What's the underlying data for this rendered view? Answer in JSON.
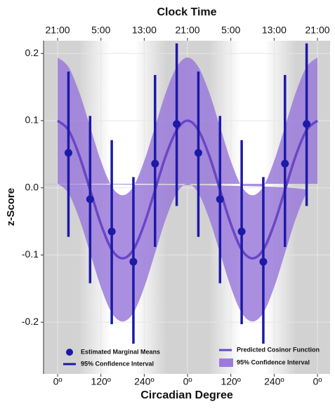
{
  "chart_data": {
    "type": "cosinor",
    "title": "Clock Time",
    "xlabel": "Circadian Degree",
    "ylabel": "z-Score",
    "xlim": [
      -39,
      755
    ],
    "ylim": [
      -0.277,
      0.219
    ],
    "xticks": [
      {
        "value": 0,
        "label": "0º"
      },
      {
        "value": 120,
        "label": "120º"
      },
      {
        "value": 240,
        "label": "240º"
      },
      {
        "value": 360,
        "label": "0º"
      },
      {
        "value": 480,
        "label": "120º"
      },
      {
        "value": 600,
        "label": "240º"
      },
      {
        "value": 720,
        "label": "0º"
      }
    ],
    "x2ticks": [
      {
        "value": 0,
        "label": "21:00"
      },
      {
        "value": 120,
        "label": "5:00"
      },
      {
        "value": 240,
        "label": "13:00"
      },
      {
        "value": 360,
        "label": "21:00"
      },
      {
        "value": 480,
        "label": "5:00"
      },
      {
        "value": 600,
        "label": "13:00"
      },
      {
        "value": 720,
        "label": "21:00"
      }
    ],
    "yticks": [
      -0.2,
      -0.1,
      {
        "value": 0,
        "label": "0.0"
      },
      0.1,
      0.2
    ],
    "grid": true,
    "series": [
      {
        "name": "Estimated Marginal Means",
        "type": "points",
        "color": "#1c1aa6",
        "x": [
          30,
          90,
          150,
          210,
          270,
          330,
          390,
          450,
          510,
          570,
          630,
          690
        ],
        "values": [
          0.052,
          -0.017,
          -0.065,
          -0.11,
          0.036,
          0.095,
          0.052,
          -0.017,
          -0.065,
          -0.11,
          0.036,
          0.095
        ]
      },
      {
        "name": "95% Confidence Interval",
        "type": "errorbar",
        "color": "#1c1aa6",
        "lower": [
          -0.073,
          -0.142,
          -0.203,
          -0.232,
          -0.088,
          -0.027,
          -0.073,
          -0.142,
          -0.203,
          -0.232,
          -0.088,
          -0.027
        ],
        "upper": [
          0.173,
          0.107,
          0.071,
          0.016,
          0.168,
          0.215,
          0.173,
          0.107,
          0.071,
          0.016,
          0.168,
          0.215
        ]
      },
      {
        "name": "Predicted Cosinor Function",
        "type": "line",
        "color": "#6b45c6",
        "x": [
          0,
          30,
          60,
          90,
          120,
          150,
          180,
          210,
          240,
          270,
          300,
          330,
          360,
          390,
          420,
          450,
          480,
          510,
          540,
          570,
          600,
          630,
          660,
          690,
          720
        ],
        "values": [
          0.1,
          0.086,
          0.048,
          -0.003,
          -0.054,
          -0.092,
          -0.105,
          -0.092,
          -0.054,
          -0.003,
          0.048,
          0.086,
          0.1,
          0.086,
          0.048,
          -0.003,
          -0.054,
          -0.092,
          -0.105,
          -0.092,
          -0.054,
          -0.003,
          0.048,
          0.086,
          0.1
        ]
      },
      {
        "name": "95% Confidence Interval",
        "type": "band",
        "color": "#9b7bda",
        "upper": [
          0.194,
          0.18,
          0.142,
          0.091,
          0.04,
          0.002,
          -0.011,
          0.002,
          0.04,
          0.091,
          0.142,
          0.18,
          0.194,
          0.18,
          0.142,
          0.091,
          0.04,
          0.002,
          -0.011,
          0.002,
          0.04,
          0.091,
          0.142,
          0.18,
          0.194
        ],
        "lower": [
          0.006,
          -0.008,
          -0.046,
          -0.097,
          -0.148,
          -0.186,
          -0.199,
          -0.186,
          -0.148,
          -0.097,
          -0.046,
          -0.008,
          0.006,
          -0.008,
          -0.046,
          -0.097,
          -0.148,
          -0.186,
          -0.199,
          -0.186,
          -0.148,
          -0.097,
          -0.046,
          -0.008,
          0.006
        ]
      }
    ]
  }
}
